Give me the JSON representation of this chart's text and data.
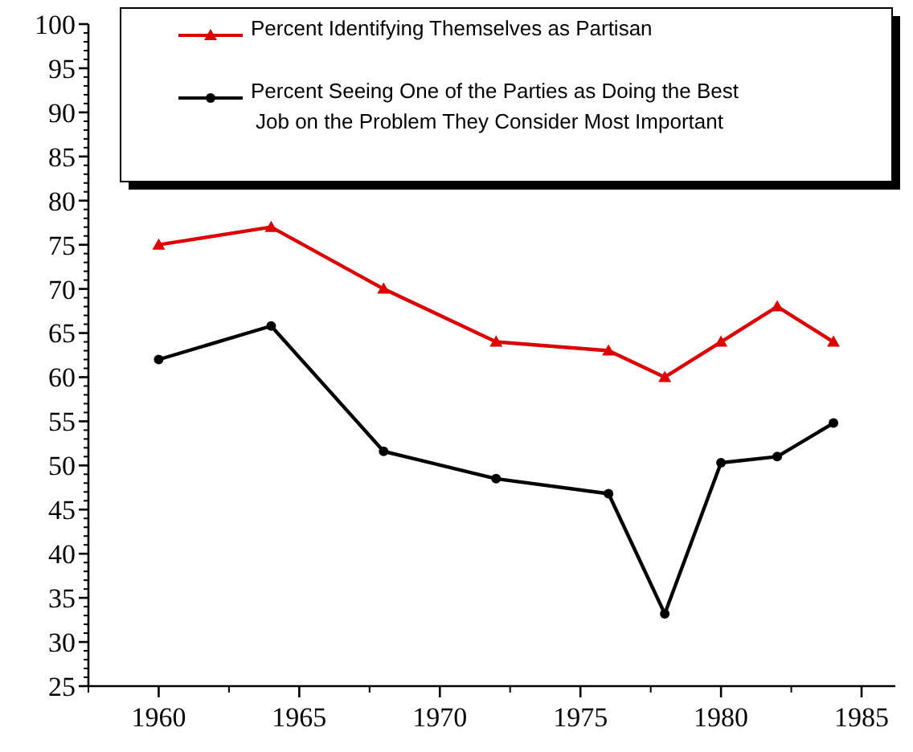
{
  "chart_data": {
    "type": "line",
    "x": [
      1960,
      1964,
      1968,
      1972,
      1976,
      1978,
      1980,
      1982,
      1984
    ],
    "series": [
      {
        "name": "Percent Identifying Themselves as Partisan",
        "color": "#dd0000",
        "marker": "triangle",
        "values": [
          75,
          77,
          70,
          64,
          63,
          60,
          64,
          68,
          64
        ]
      },
      {
        "name": "Percent Seeing One of the Parties as Doing the Best\nJob on the Problem They Consider Most Important",
        "color": "#000000",
        "marker": "circle",
        "values": [
          62,
          65.8,
          51.6,
          48.5,
          46.8,
          33.2,
          50.3,
          51,
          54.8
        ]
      }
    ],
    "xlim": [
      1957.5,
      1986.2
    ],
    "xticks": [
      1960,
      1965,
      1970,
      1975,
      1980,
      1985
    ],
    "ylim": [
      25,
      100
    ],
    "yticks": [
      25,
      30,
      35,
      40,
      45,
      50,
      55,
      60,
      65,
      70,
      75,
      80,
      85,
      90,
      95,
      100
    ],
    "legend": "top right",
    "grid": false,
    "line_style": "solid"
  }
}
